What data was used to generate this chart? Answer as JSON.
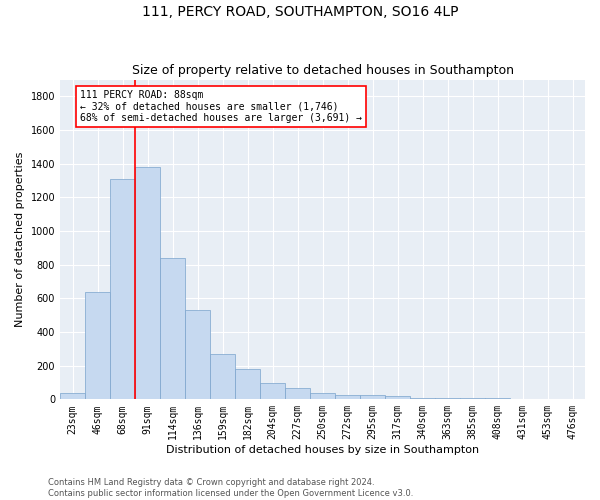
{
  "title": "111, PERCY ROAD, SOUTHAMPTON, SO16 4LP",
  "subtitle": "Size of property relative to detached houses in Southampton",
  "xlabel": "Distribution of detached houses by size in Southampton",
  "ylabel": "Number of detached properties",
  "categories": [
    "23sqm",
    "46sqm",
    "68sqm",
    "91sqm",
    "114sqm",
    "136sqm",
    "159sqm",
    "182sqm",
    "204sqm",
    "227sqm",
    "250sqm",
    "272sqm",
    "295sqm",
    "317sqm",
    "340sqm",
    "363sqm",
    "385sqm",
    "408sqm",
    "431sqm",
    "453sqm",
    "476sqm"
  ],
  "values": [
    40,
    640,
    1310,
    1380,
    840,
    530,
    270,
    180,
    100,
    65,
    35,
    28,
    28,
    18,
    5,
    5,
    5,
    5,
    0,
    0,
    0
  ],
  "bar_color": "#c6d9f0",
  "bar_edge_color": "#7aa3cc",
  "vline_color": "red",
  "vline_x": 2.5,
  "annotation_text": "111 PERCY ROAD: 88sqm\n← 32% of detached houses are smaller (1,746)\n68% of semi-detached houses are larger (3,691) →",
  "annotation_box_color": "white",
  "annotation_box_edge_color": "red",
  "ylim": [
    0,
    1900
  ],
  "yticks": [
    0,
    200,
    400,
    600,
    800,
    1000,
    1200,
    1400,
    1600,
    1800
  ],
  "background_color": "#e8eef5",
  "footer_line1": "Contains HM Land Registry data © Crown copyright and database right 2024.",
  "footer_line2": "Contains public sector information licensed under the Open Government Licence v3.0.",
  "title_fontsize": 10,
  "subtitle_fontsize": 9,
  "xlabel_fontsize": 8,
  "ylabel_fontsize": 8,
  "tick_fontsize": 7,
  "annotation_fontsize": 7,
  "footer_fontsize": 6
}
